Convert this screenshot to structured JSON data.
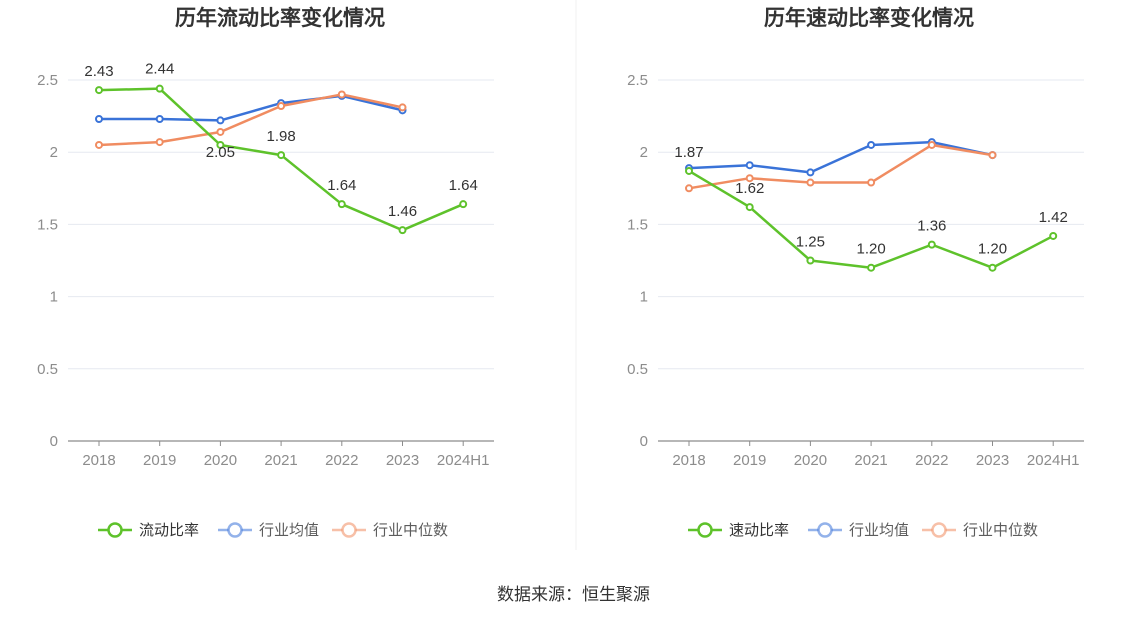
{
  "colors": {
    "primary": "#5ec22b",
    "average": "#3a73d8",
    "median": "#f08c61",
    "grid": "#e6e9f0",
    "axis": "#8c8c8c"
  },
  "chart_data": [
    {
      "type": "line",
      "title": "历年流动比率变化情况",
      "categories": [
        "2018",
        "2019",
        "2020",
        "2021",
        "2022",
        "2023",
        "2024H1"
      ],
      "ylim": [
        0,
        2.5
      ],
      "yticks": [
        "0",
        "0.5",
        "1",
        "1.5",
        "2",
        "2.5"
      ],
      "grid": true,
      "legend_position": "bottom-center",
      "series": [
        {
          "name": "流动比率",
          "color": "#5ec22b",
          "values": [
            2.43,
            2.44,
            2.05,
            1.98,
            1.64,
            1.46,
            1.64
          ],
          "labels": [
            "2.43",
            "2.44",
            "2.05",
            "1.98",
            "1.64",
            "1.46",
            "1.64"
          ]
        },
        {
          "name": "行业均值",
          "color": "#3a73d8",
          "values": [
            2.23,
            2.23,
            2.22,
            2.34,
            2.39,
            2.29,
            null
          ]
        },
        {
          "name": "行业中位数",
          "color": "#f08c61",
          "values": [
            2.05,
            2.07,
            2.14,
            2.32,
            2.4,
            2.31,
            null
          ]
        }
      ]
    },
    {
      "type": "line",
      "title": "历年速动比率变化情况",
      "categories": [
        "2018",
        "2019",
        "2020",
        "2021",
        "2022",
        "2023",
        "2024H1"
      ],
      "ylim": [
        0,
        2.5
      ],
      "yticks": [
        "0",
        "0.5",
        "1",
        "1.5",
        "2",
        "2.5"
      ],
      "grid": true,
      "legend_position": "bottom-center",
      "series": [
        {
          "name": "速动比率",
          "color": "#5ec22b",
          "values": [
            1.87,
            1.62,
            1.25,
            1.2,
            1.36,
            1.2,
            1.42
          ],
          "labels": [
            "1.87",
            "1.62",
            "1.25",
            "1.20",
            "1.36",
            "1.20",
            "1.42"
          ]
        },
        {
          "name": "行业均值",
          "color": "#3a73d8",
          "values": [
            1.89,
            1.91,
            1.86,
            2.05,
            2.07,
            1.98,
            null
          ]
        },
        {
          "name": "行业中位数",
          "color": "#f08c61",
          "values": [
            1.75,
            1.82,
            1.79,
            1.79,
            2.05,
            1.98,
            null
          ]
        }
      ]
    }
  ],
  "footer": {
    "source": "数据来源：恒生聚源"
  }
}
